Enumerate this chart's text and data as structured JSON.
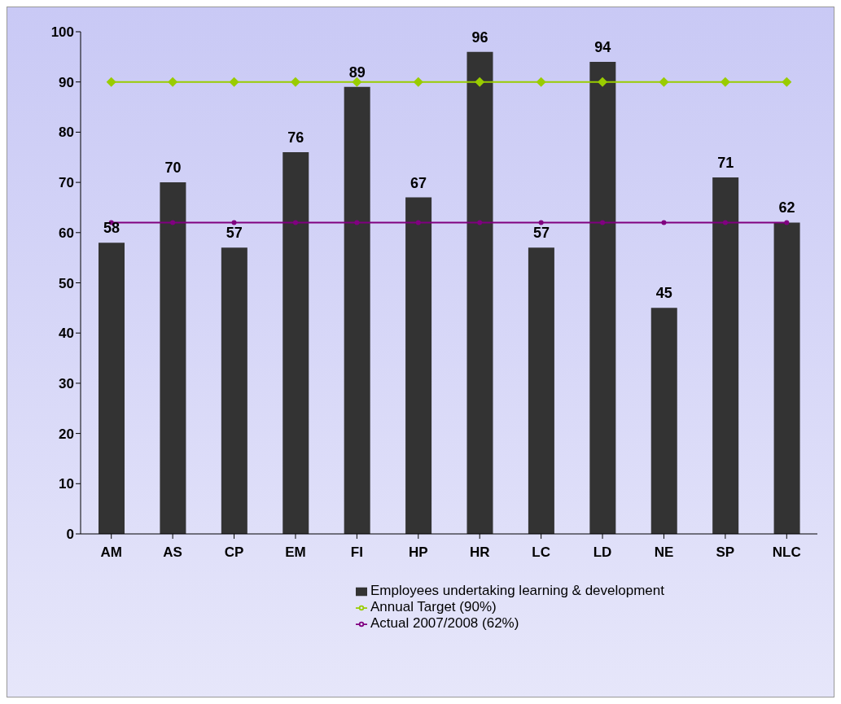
{
  "chart_data": {
    "type": "bar",
    "categories": [
      "AM",
      "AS",
      "CP",
      "EM",
      "FI",
      "HP",
      "HR",
      "LC",
      "LD",
      "NE",
      "SP",
      "NLC"
    ],
    "series": [
      {
        "name": "Employees undertaking learning & development",
        "color": "#333333",
        "values": [
          58,
          70,
          57,
          76,
          89,
          67,
          96,
          57,
          94,
          45,
          71,
          62
        ],
        "value_labels": [
          "58",
          "70",
          "57",
          "76",
          "89",
          "67",
          "96",
          "57",
          "94",
          "45",
          "71",
          "62"
        ]
      },
      {
        "name": "Annual Target (90%)",
        "type": "line",
        "color": "#99cc00",
        "marker": "diamond",
        "values": [
          90,
          90,
          90,
          90,
          90,
          90,
          90,
          90,
          90,
          90,
          90,
          90
        ]
      },
      {
        "name": "Actual 2007/2008 (62%)",
        "type": "line",
        "color": "#800080",
        "marker": "circle",
        "values": [
          62,
          62,
          62,
          62,
          62,
          62,
          62,
          62,
          62,
          62,
          62,
          62
        ]
      }
    ],
    "ylim": [
      0,
      100
    ],
    "yticks": [
      0,
      10,
      20,
      30,
      40,
      50,
      60,
      70,
      80,
      90,
      100
    ],
    "legend": "bottom"
  }
}
